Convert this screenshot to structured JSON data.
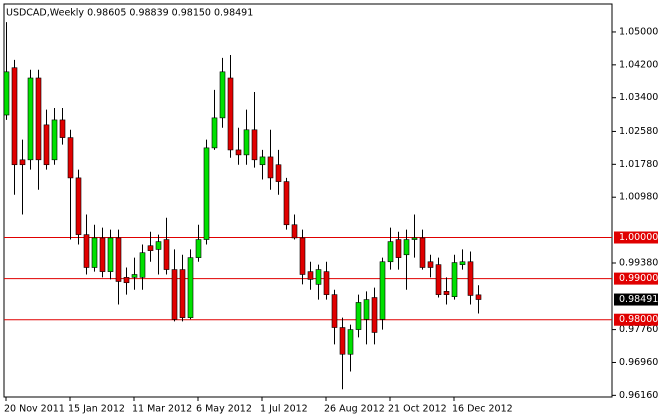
{
  "chart_data": {
    "type": "candlestick",
    "title": "USDCAD,Weekly  0.98605 0.98839 0.98150 0.98491",
    "categories": [
      "20 Nov 2011",
      null,
      null,
      null,
      null,
      null,
      null,
      null,
      "15 Jan 2012",
      null,
      null,
      null,
      null,
      null,
      null,
      null,
      "11 Mar 2012",
      null,
      null,
      null,
      null,
      null,
      null,
      null,
      "6 May 2012",
      null,
      null,
      null,
      null,
      null,
      null,
      null,
      "1 Jul 2012",
      null,
      null,
      null,
      null,
      null,
      null,
      null,
      "26 Aug 2012",
      null,
      null,
      null,
      null,
      null,
      null,
      null,
      "21 Oct 2012",
      null,
      null,
      null,
      null,
      null,
      null,
      null,
      "16 Dec 2012",
      null,
      null,
      null
    ],
    "open": [
      1.0298,
      1.0413,
      1.0189,
      1.0189,
      1.0388,
      1.0274,
      1.0189,
      1.0286,
      1.0243,
      1.0145,
      1.0007,
      0.9927,
      0.9999,
      0.9917,
      0.9999,
      0.9903,
      0.9903,
      0.9903,
      0.998,
      0.9971,
      0.9995,
      0.9922,
      0.9922,
      0.9805,
      0.9951,
      0.9995,
      1.0218,
      1.0291,
      1.0388,
      1.0213,
      1.0201,
      1.0262,
      1.0177,
      1.0196,
      1.0177,
      1.0136,
      1.0031,
      0.9999,
      0.9917,
      0.9886,
      0.9917,
      0.9861,
      0.9781,
      0.9716,
      0.9776,
      0.9801,
      0.9854,
      0.9801,
      0.9941,
      0.9995,
      0.9958,
      0.9995,
      0.9999,
      0.9941,
      0.9934,
      0.9869,
      0.9856,
      0.9934,
      0.9941,
      0.98605
    ],
    "high": [
      1.0524,
      1.0432,
      1.0238,
      1.0408,
      1.0408,
      1.0311,
      1.0315,
      1.0315,
      1.0262,
      1.0165,
      1.0056,
      1.0031,
      1.0024,
      1.0019,
      1.0019,
      0.9927,
      0.9951,
      0.9983,
      1.0014,
      1.0007,
      1.0048,
      0.9971,
      0.9958,
      0.9971,
      1.0031,
      1.0238,
      1.0359,
      1.0437,
      1.0444,
      1.0267,
      1.0311,
      1.0354,
      1.0213,
      1.0262,
      1.0213,
      1.0145,
      1.0056,
      1.0019,
      0.9941,
      0.9934,
      0.9941,
      0.9873,
      0.9805,
      0.9788,
      0.9861,
      0.9869,
      0.9878,
      0.9951,
      1.0024,
      1.0014,
      1.0019,
      1.0056,
      1.0019,
      0.9958,
      0.9951,
      0.9903,
      0.9958,
      0.9971,
      0.9966,
      0.98839
    ],
    "low": [
      1.0286,
      1.0104,
      1.0056,
      1.0165,
      1.0116,
      1.0165,
      1.0177,
      1.0226,
      0.9995,
      0.9983,
      0.991,
      0.9917,
      0.9903,
      0.9898,
      0.9837,
      0.9861,
      0.9873,
      0.9873,
      0.9941,
      0.991,
      0.991,
      0.9796,
      0.9796,
      0.9801,
      0.9941,
      0.9983,
      1.0213,
      1.0267,
      1.0194,
      1.0177,
      1.0177,
      1.017,
      1.0141,
      1.0116,
      1.0104,
      1.0019,
      0.9995,
      0.9886,
      0.9873,
      0.9849,
      0.9849,
      0.974,
      0.9631,
      0.9674,
      0.9757,
      0.974,
      0.974,
      0.9776,
      0.9922,
      0.9922,
      0.9873,
      0.9951,
      0.9922,
      0.9903,
      0.9854,
      0.9837,
      0.9849,
      0.9922,
      0.9837,
      0.9815
    ],
    "close": [
      1.0403,
      1.0177,
      1.0177,
      1.0388,
      1.0189,
      1.0177,
      1.0286,
      1.0243,
      1.0145,
      1.0007,
      0.9927,
      0.9999,
      0.9917,
      0.9999,
      0.9893,
      0.989,
      0.991,
      0.9963,
      0.9968,
      0.999,
      0.9922,
      0.9801,
      0.9805,
      0.9951,
      0.9995,
      1.0218,
      1.0291,
      1.0403,
      1.0213,
      1.0201,
      1.0262,
      1.0189,
      1.0196,
      1.0145,
      1.0136,
      1.0031,
      0.9999,
      0.991,
      0.9898,
      0.9922,
      0.9861,
      0.9781,
      0.9716,
      0.9776,
      0.9842,
      0.9849,
      0.9769,
      0.9941,
      0.999,
      0.9951,
      0.9995,
      0.9999,
      0.9927,
      0.9927,
      0.9861,
      0.9861,
      0.9939,
      0.9941,
      0.9859,
      0.98491
    ],
    "up_color": "#00e000",
    "down_color": "#e00000",
    "ylim": [
      0.9612,
      1.0568
    ],
    "yticks": [
      {
        "value": 1.05,
        "label": "1.05000"
      },
      {
        "value": 1.042,
        "label": "1.04200"
      },
      {
        "value": 1.034,
        "label": "1.03400"
      },
      {
        "value": 1.0258,
        "label": "1.02580"
      },
      {
        "value": 1.0178,
        "label": "1.01780"
      },
      {
        "value": 1.0098,
        "label": "1.00980"
      },
      {
        "value": 0.9938,
        "label": "0.99380"
      },
      {
        "value": 0.9776,
        "label": "0.97760"
      },
      {
        "value": 0.9696,
        "label": "0.96960"
      },
      {
        "value": 0.9616,
        "label": "0.96160"
      }
    ],
    "hlines": [
      {
        "value": 1.0,
        "label": "1.00000"
      },
      {
        "value": 0.99,
        "label": "0.99000"
      },
      {
        "value": 0.98,
        "label": "0.98000"
      }
    ],
    "hline_color": "#e00000",
    "grid": false
  }
}
